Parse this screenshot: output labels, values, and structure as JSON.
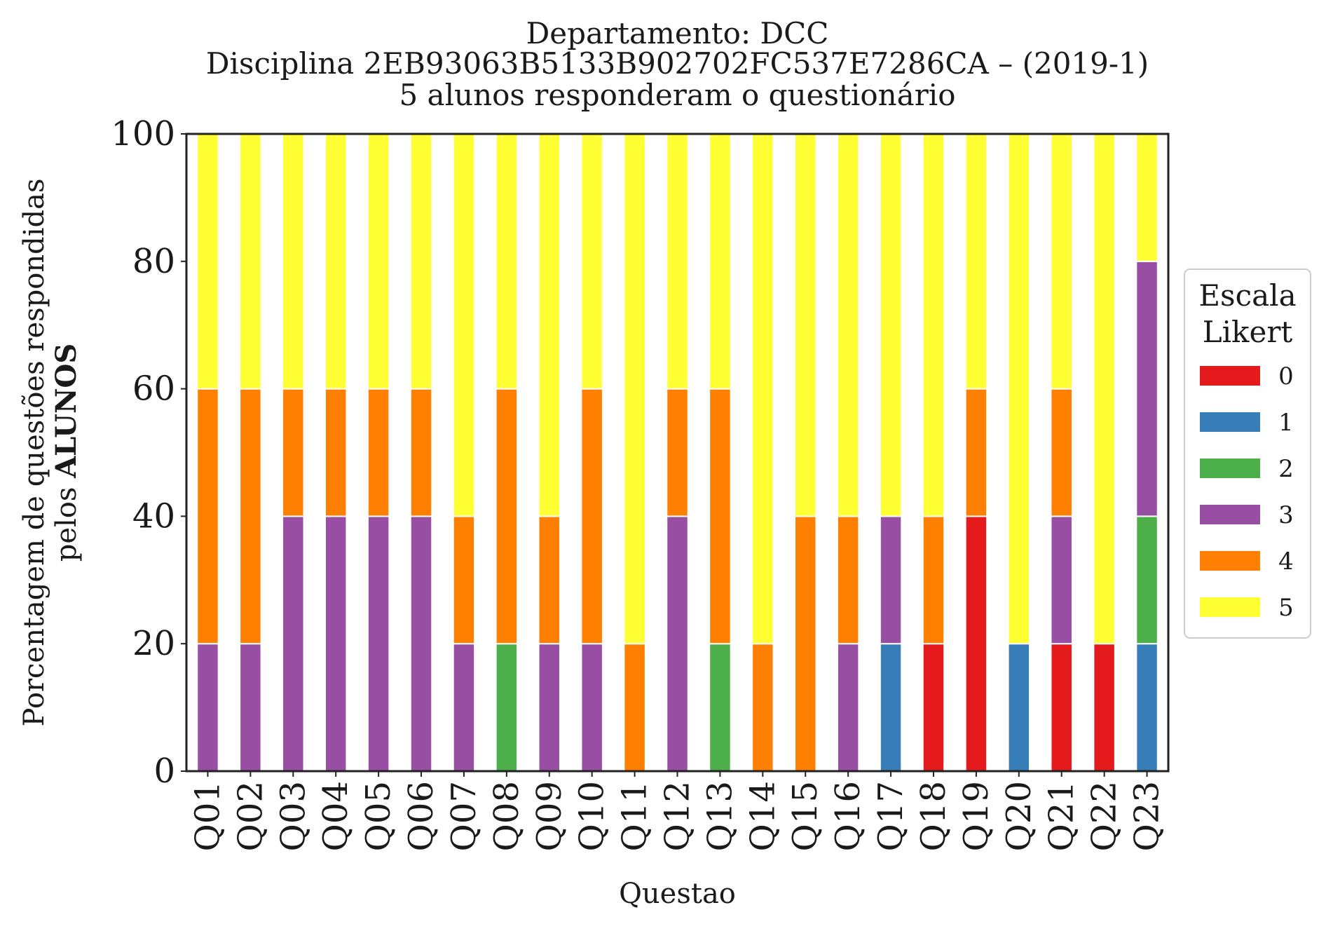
{
  "chart_data": {
    "type": "bar",
    "stacked": true,
    "title_lines": [
      "Departamento: DCC",
      "Disciplina 2EB93063B5133B902702FC537E7286CA – (2019-1)",
      "5 alunos responderam o questionário"
    ],
    "ylabel_line1": "Porcentagem de questões respondidas",
    "ylabel_line2_prefix": "pelos ",
    "ylabel_line2_bold": "ALUNOS",
    "xlabel": "Questao",
    "ylim": [
      0,
      100
    ],
    "yticks": [
      0,
      20,
      40,
      60,
      80,
      100
    ],
    "grid": false,
    "legend": {
      "title_lines": [
        "Escala",
        "Likert"
      ],
      "placement": "right-center"
    },
    "categories": [
      "Q01",
      "Q02",
      "Q03",
      "Q04",
      "Q05",
      "Q06",
      "Q07",
      "Q08",
      "Q09",
      "Q10",
      "Q11",
      "Q12",
      "Q13",
      "Q14",
      "Q15",
      "Q16",
      "Q17",
      "Q18",
      "Q19",
      "Q20",
      "Q21",
      "Q22",
      "Q23"
    ],
    "series": [
      {
        "name": "0",
        "color": "#e41a1c",
        "values": [
          0,
          0,
          0,
          0,
          0,
          0,
          0,
          0,
          0,
          0,
          0,
          0,
          0,
          0,
          0,
          0,
          0,
          20,
          40,
          0,
          20,
          20,
          0
        ]
      },
      {
        "name": "1",
        "color": "#377eb8",
        "values": [
          0,
          0,
          0,
          0,
          0,
          0,
          0,
          0,
          0,
          0,
          0,
          0,
          0,
          0,
          0,
          0,
          20,
          0,
          0,
          20,
          0,
          0,
          20
        ]
      },
      {
        "name": "2",
        "color": "#4daf4a",
        "values": [
          0,
          0,
          0,
          0,
          0,
          0,
          0,
          20,
          0,
          0,
          0,
          0,
          20,
          0,
          0,
          0,
          0,
          0,
          0,
          0,
          0,
          0,
          20
        ]
      },
      {
        "name": "3",
        "color": "#984ea3",
        "values": [
          20,
          20,
          40,
          40,
          40,
          40,
          20,
          0,
          20,
          20,
          0,
          40,
          0,
          0,
          0,
          20,
          20,
          0,
          0,
          0,
          20,
          0,
          40
        ]
      },
      {
        "name": "4",
        "color": "#ff7f00",
        "values": [
          40,
          40,
          20,
          20,
          20,
          20,
          20,
          40,
          20,
          40,
          20,
          20,
          40,
          20,
          40,
          20,
          0,
          20,
          20,
          0,
          20,
          0,
          0
        ]
      },
      {
        "name": "5",
        "color": "#ffff33",
        "values": [
          40,
          40,
          40,
          40,
          40,
          40,
          60,
          40,
          60,
          40,
          80,
          40,
          40,
          80,
          60,
          60,
          60,
          60,
          40,
          80,
          40,
          80,
          20
        ]
      }
    ]
  }
}
